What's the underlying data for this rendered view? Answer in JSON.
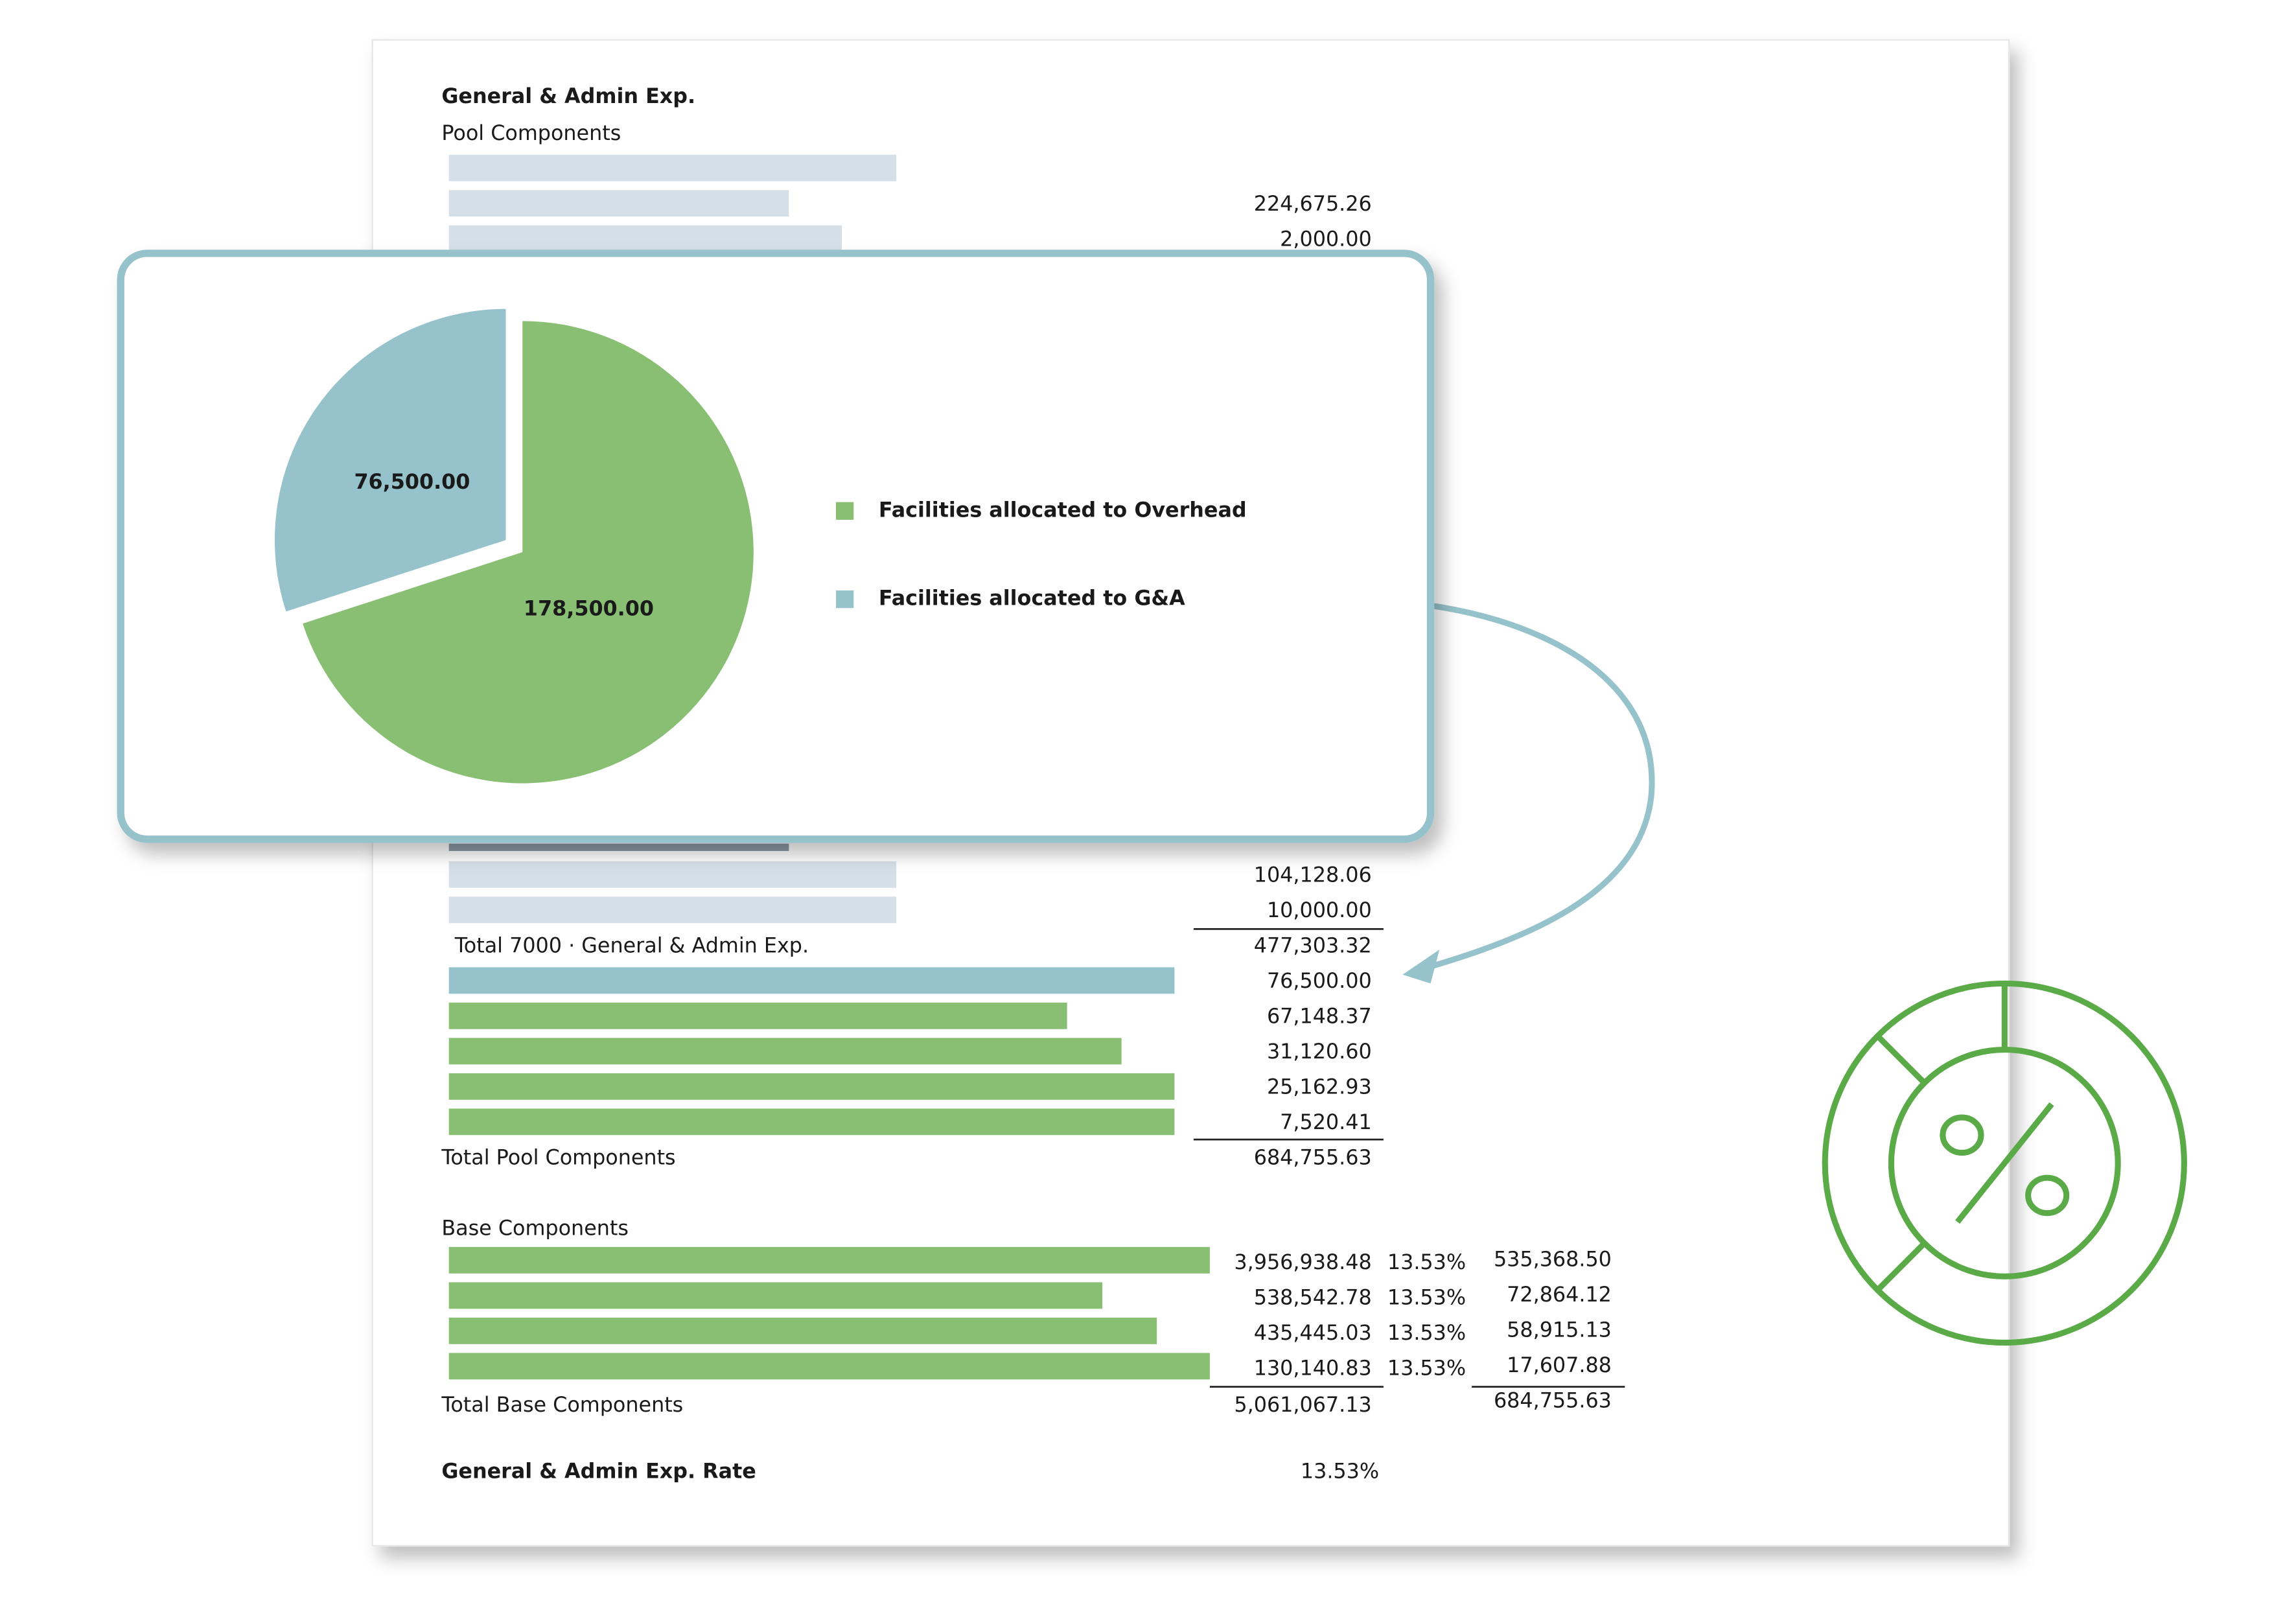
{
  "report": {
    "title": "General & Admin Exp.",
    "pool_heading": "Pool Components",
    "top_amounts": [
      "224,675.26",
      "2,000.00"
    ],
    "mid_amounts": [
      "104,128.06",
      "10,000.00"
    ],
    "total_7000": {
      "label": "Total 7000 · General & Admin Exp.",
      "amount": "477,303.32"
    },
    "pool_amounts": [
      "76,500.00",
      "67,148.37",
      "31,120.60",
      "25,162.93",
      "7,520.41"
    ],
    "total_pool": {
      "label": "Total Pool Components",
      "amount": "684,755.63"
    },
    "base_heading": "Base Components",
    "base_rows": [
      [
        "3,956,938.48",
        "13.53%",
        "535,368.50"
      ],
      [
        "538,542.78",
        "13.53%",
        "72,864.12"
      ],
      [
        "435,445.03",
        "13.53%",
        "58,915.13"
      ],
      [
        "130,140.83",
        "13.53%",
        "17,607.88"
      ]
    ],
    "total_base": {
      "label": "Total Base Components",
      "amount": "5,061,067.13",
      "allocated": "684,755.63"
    },
    "rate": {
      "label": "General & Admin Exp. Rate",
      "value": "13.53%"
    }
  },
  "chart_data": {
    "type": "pie",
    "series": [
      {
        "name": "Facilities allocated to Overhead",
        "color": "#88bf72",
        "values": [
          178500
        ],
        "value_labels": [
          "178,500.00"
        ]
      },
      {
        "name": "Facilities allocated to G&A",
        "color": "#96c3cb",
        "values": [
          76500
        ],
        "value_labels": [
          "76,500.00"
        ]
      }
    ]
  }
}
